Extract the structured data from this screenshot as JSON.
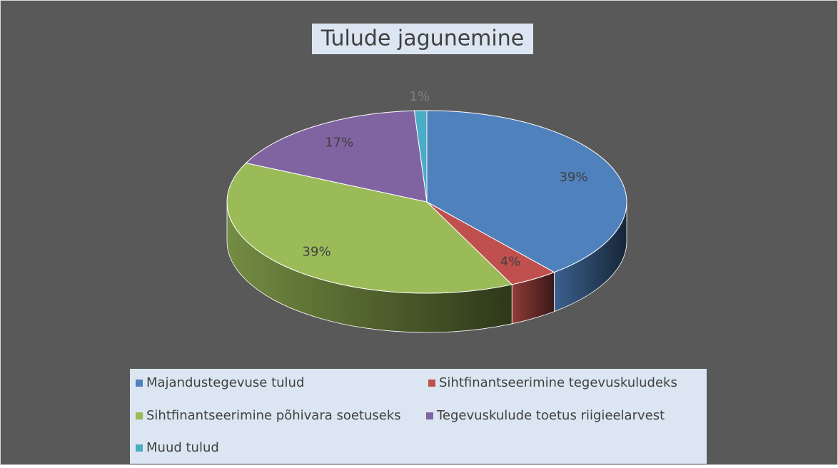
{
  "chart_data": {
    "type": "pie",
    "title": "Tulude jagunemine",
    "categories": [
      "Majandustegevuse tulud",
      "Sihtfinantseerimine tegevuskuludeks",
      "Sihtfinantseerimine põhivara soetuseks",
      "Tegevuskulude toetus riigieelarvest",
      "Muud tulud"
    ],
    "values": [
      39,
      4,
      39,
      17,
      1
    ],
    "value_labels": [
      "39%",
      "4%",
      "39%",
      "17%",
      "1%"
    ],
    "colors": [
      "#4f81bd",
      "#c0504d",
      "#9bbb59",
      "#8064a2",
      "#4bacc6"
    ],
    "legend": "bottom"
  }
}
